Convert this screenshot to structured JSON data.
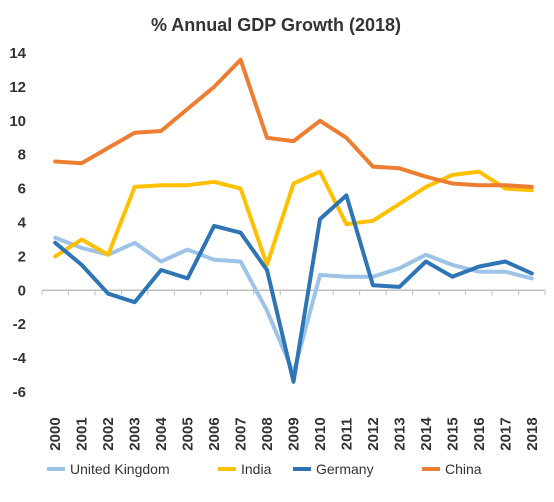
{
  "chart_data": {
    "type": "line",
    "title": "% Annual GDP Growth (2018)",
    "xlabel": "",
    "ylabel": "",
    "categories": [
      "2000",
      "2001",
      "2002",
      "2003",
      "2004",
      "2005",
      "2006",
      "2007",
      "2008",
      "2009",
      "2010",
      "2011",
      "2012",
      "2013",
      "2014",
      "2015",
      "2016",
      "2017",
      "2018"
    ],
    "yticks": [
      "14",
      "12",
      "10",
      "8",
      "6",
      "4",
      "2",
      "0",
      "-2",
      "-4",
      "-6"
    ],
    "ylim": [
      -6,
      14
    ],
    "grid": false,
    "legend_position": "bottom",
    "series": [
      {
        "name": "United Kingdom",
        "color": "#9DC3E6",
        "values": [
          3.1,
          2.5,
          2.1,
          2.8,
          1.7,
          2.4,
          1.8,
          1.7,
          -1.2,
          -4.9,
          0.9,
          0.8,
          0.8,
          1.3,
          2.1,
          1.5,
          1.1,
          1.1,
          0.7
        ]
      },
      {
        "name": "India",
        "color": "#FFC000",
        "values": [
          2.0,
          3.0,
          2.1,
          6.1,
          6.2,
          6.2,
          6.4,
          6.0,
          1.5,
          6.3,
          7.0,
          3.9,
          4.1,
          5.1,
          6.1,
          6.8,
          7.0,
          6.0,
          5.9
        ]
      },
      {
        "name": "Germany",
        "color": "#2E75B6",
        "values": [
          2.8,
          1.5,
          -0.2,
          -0.7,
          1.2,
          0.7,
          3.8,
          3.4,
          1.2,
          -5.4,
          4.2,
          5.6,
          0.3,
          0.2,
          1.7,
          0.8,
          1.4,
          1.7,
          1.0
        ]
      },
      {
        "name": "China",
        "color": "#ED7D31",
        "values": [
          7.6,
          7.5,
          8.4,
          9.3,
          9.4,
          10.7,
          12.0,
          13.6,
          9.0,
          8.8,
          10.0,
          9.0,
          7.3,
          7.2,
          6.7,
          6.3,
          6.2,
          6.2,
          6.1
        ]
      }
    ]
  }
}
